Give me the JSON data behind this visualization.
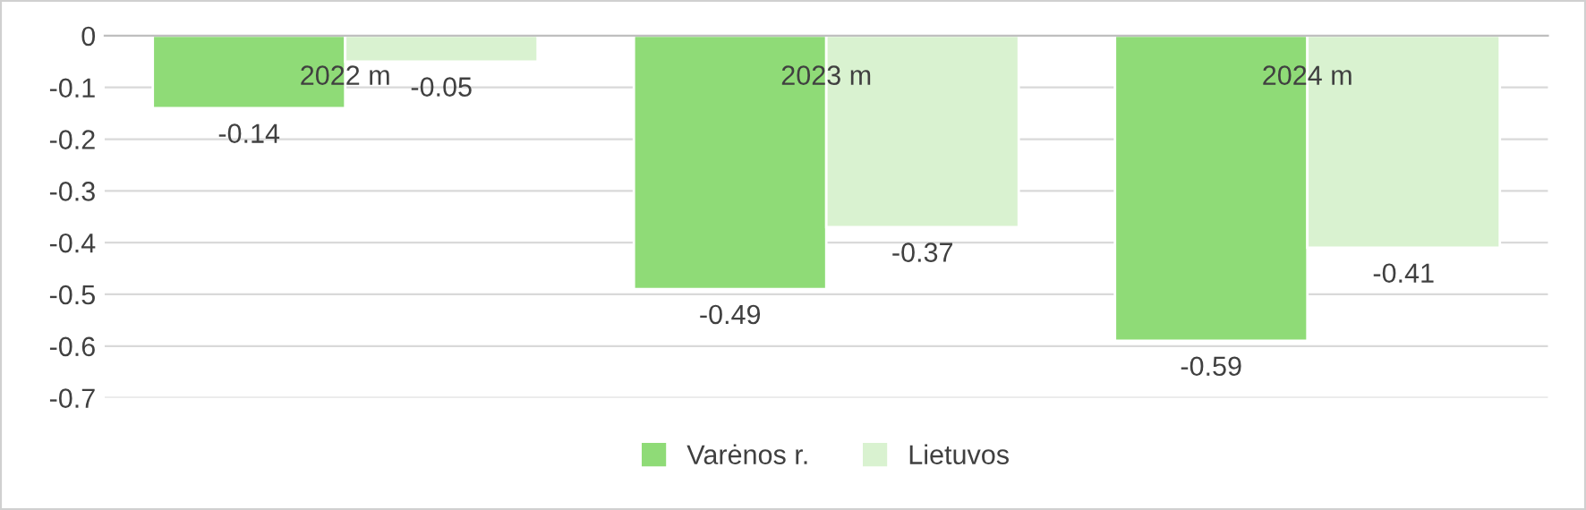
{
  "chart_data": {
    "type": "bar",
    "categories": [
      "2022 m",
      "2023 m",
      "2024 m"
    ],
    "series": [
      {
        "name": "Varėnos r.",
        "color": "#8fdb77",
        "values": [
          -0.14,
          -0.49,
          -0.59
        ]
      },
      {
        "name": "Lietuvos",
        "color": "#d9f2d0",
        "values": [
          -0.05,
          -0.37,
          -0.41
        ]
      }
    ],
    "ylim": [
      -0.7,
      0
    ],
    "yticks": [
      0,
      -0.1,
      -0.2,
      -0.3,
      -0.4,
      -0.5,
      -0.6,
      -0.7
    ],
    "grid": "y",
    "legend": "bottom",
    "data_labels": true
  }
}
